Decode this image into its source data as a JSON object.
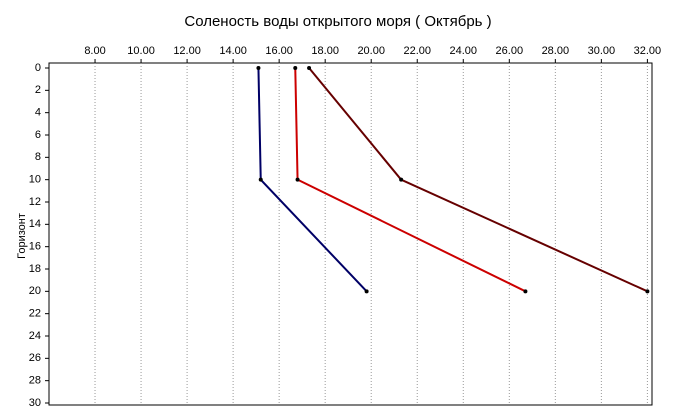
{
  "chart_data": {
    "type": "line",
    "title": "Соленость воды открытого моря    ( Октябрь )",
    "y_label": "Горизонт",
    "y": [
      0,
      10,
      20
    ],
    "series": [
      {
        "color": "#000066",
        "values": [
          15.1,
          15.2,
          19.8
        ]
      },
      {
        "color": "#cc0000",
        "values": [
          16.7,
          16.8,
          26.7
        ]
      },
      {
        "color": "#660000",
        "values": [
          17.3,
          21.3,
          32.0
        ]
      }
    ],
    "xlim": [
      6,
      32.2
    ],
    "xticks": [
      {
        "value": 8,
        "label": "8.00"
      },
      {
        "value": 10,
        "label": "10.00"
      },
      {
        "value": 12,
        "label": "12.00"
      },
      {
        "value": 14,
        "label": "14.00"
      },
      {
        "value": 16,
        "label": "16.00"
      },
      {
        "value": 18,
        "label": "18.00"
      },
      {
        "value": 20,
        "label": "20.00"
      },
      {
        "value": 22,
        "label": "22.00"
      },
      {
        "value": 24,
        "label": "24.00"
      },
      {
        "value": 26,
        "label": "26.00"
      },
      {
        "value": 28,
        "label": "28.00"
      },
      {
        "value": 30,
        "label": "30.00"
      },
      {
        "value": 32,
        "label": "32.00"
      }
    ],
    "ylim": [
      0,
      30
    ],
    "yticks": [
      0,
      2,
      4,
      6,
      8,
      10,
      12,
      14,
      16,
      18,
      20,
      22,
      24,
      26,
      28,
      30
    ],
    "y_inverted": true,
    "grid": true
  }
}
